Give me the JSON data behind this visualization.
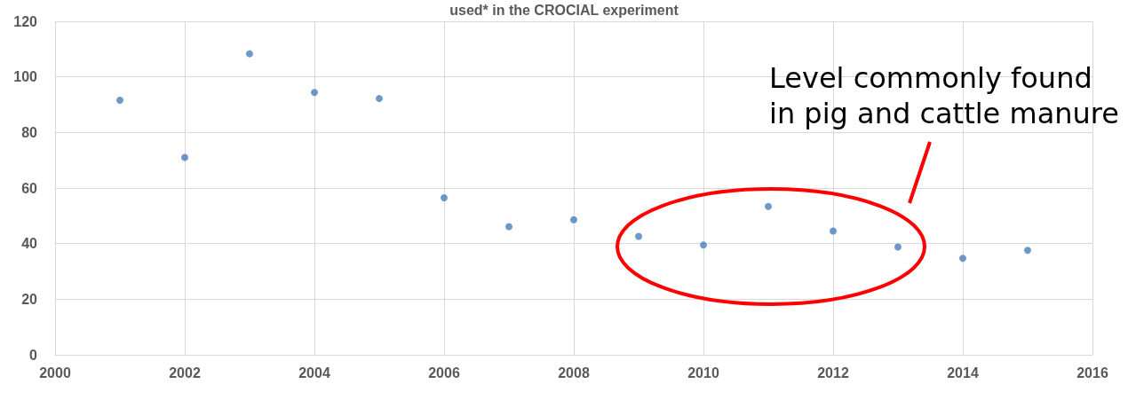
{
  "chart_data": {
    "type": "scatter",
    "title": "used* in the CROCIAL experiment",
    "x": [
      2001,
      2002,
      2003,
      2004,
      2005,
      2006,
      2007,
      2008,
      2009,
      2010,
      2011,
      2012,
      2013,
      2014,
      2015
    ],
    "values": [
      91.6,
      71,
      108.3,
      94.4,
      92.2,
      56.5,
      46.1,
      48.6,
      42.6,
      39.5,
      53.4,
      44.5,
      38.8,
      34.7,
      37.6
    ],
    "color": "#4a7ebb",
    "marker": "circle",
    "xlim": [
      2000,
      2016
    ],
    "xticks": [
      2000,
      2002,
      2004,
      2006,
      2008,
      2010,
      2012,
      2014,
      2016
    ],
    "ylim": [
      0,
      120
    ],
    "yticks": [
      0,
      20,
      40,
      60,
      80,
      100,
      120
    ],
    "grid": true,
    "annotations": [
      "Level commonly found in pig and cattle manure"
    ]
  }
}
